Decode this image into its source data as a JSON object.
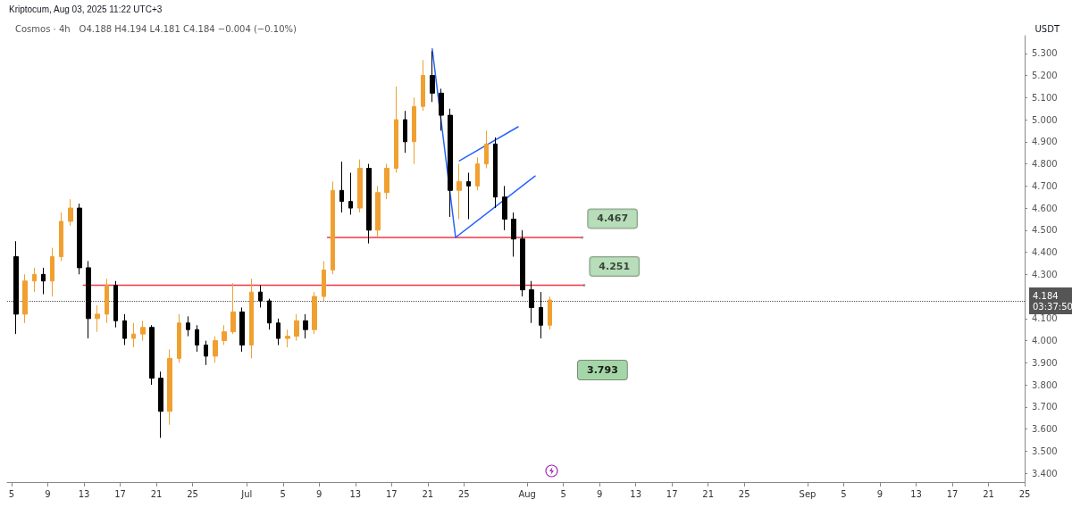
{
  "chart_data": {
    "type": "candlestick",
    "title": "Cosmos · 4h",
    "subtitle": "O4.188 H4.194 L4.181 C4.184 −0.004 (−0.10%)",
    "ylabel": "USDT",
    "annotations": [
      "Kriptocum, Aug 03, 2025 11:22 UTC+3",
      {
        "text": "4.467",
        "x": "2025-08-07T02:00",
        "y": 4.467
      },
      {
        "text": "4.251",
        "x": "2025-08-07T07:00",
        "y": 4.251
      },
      "3.793"
    ],
    "xlim": [
      "2025-06-04T12:00",
      "2025-09-25T00:00"
    ],
    "xticks": [
      {
        "value": "2025-06-05",
        "label": "5"
      },
      {
        "value": "2025-06-09",
        "label": "9"
      },
      {
        "value": "2025-06-13",
        "label": "13"
      },
      {
        "value": "2025-06-17",
        "label": "17"
      },
      {
        "value": "2025-06-21",
        "label": "21"
      },
      {
        "value": "2025-06-25",
        "label": "25"
      },
      {
        "value": "2025-07-01",
        "label": "Jul"
      },
      {
        "value": "2025-07-05",
        "label": "5"
      },
      {
        "value": "2025-07-09",
        "label": "9"
      },
      {
        "value": "2025-07-13",
        "label": "13"
      },
      {
        "value": "2025-07-17",
        "label": "17"
      },
      {
        "value": "2025-07-21",
        "label": "21"
      },
      {
        "value": "2025-07-25",
        "label": "25"
      },
      {
        "value": "2025-08-01",
        "label": "Aug"
      },
      {
        "value": "2025-08-05",
        "label": "5"
      },
      {
        "value": "2025-08-09",
        "label": "9"
      },
      {
        "value": "2025-08-13",
        "label": "13"
      },
      {
        "value": "2025-08-17",
        "label": "17"
      },
      {
        "value": "2025-08-21",
        "label": "21"
      },
      {
        "value": "2025-08-25",
        "label": "25"
      },
      {
        "value": "2025-09-01",
        "label": "Sep"
      },
      {
        "value": "2025-09-05",
        "label": "5"
      },
      {
        "value": "2025-09-09",
        "label": "9"
      },
      {
        "value": "2025-09-13",
        "label": "13"
      },
      {
        "value": "2025-09-17",
        "label": "17"
      },
      {
        "value": "2025-09-21",
        "label": "21"
      },
      {
        "value": "2025-09-25",
        "label": "25"
      }
    ],
    "ylim": [
      3.36,
      5.38
    ],
    "yticks": [
      {
        "value": 3.4,
        "label": "3.400"
      },
      {
        "value": 3.5,
        "label": "3.500"
      },
      {
        "value": 3.6,
        "label": "3.600"
      },
      {
        "value": 3.7,
        "label": "3.700"
      },
      {
        "value": 3.8,
        "label": "3.800"
      },
      {
        "value": 3.9,
        "label": "3.900"
      },
      {
        "value": 4.0,
        "label": "4.000"
      },
      {
        "value": 4.1,
        "label": "4.100"
      },
      {
        "value": 4.3,
        "label": "4.300"
      },
      {
        "value": 4.4,
        "label": "4.400"
      },
      {
        "value": 4.5,
        "label": "4.500"
      },
      {
        "value": 4.6,
        "label": "4.600"
      },
      {
        "value": 4.7,
        "label": "4.700"
      },
      {
        "value": 4.8,
        "label": "4.800"
      },
      {
        "value": 4.9,
        "label": "4.900"
      },
      {
        "value": 5.0,
        "label": "5.000"
      },
      {
        "value": 5.1,
        "label": "5.100"
      },
      {
        "value": 5.2,
        "label": "5.200"
      },
      {
        "value": 5.3,
        "label": "5.300"
      }
    ],
    "ref_lines": [
      {
        "axis": "y",
        "value": 4.184,
        "label": "4.184\n03:37:50",
        "color": "#555555",
        "line_style": "dotted"
      }
    ],
    "series": [
      {
        "type": "candlestick",
        "colors": [
          "#000000",
          "#f0a030",
          "#f0a030",
          "#000000",
          "#f0a030",
          "#f0a030",
          "#f0a030",
          "#000000",
          "#000000",
          "#f0a030",
          "#f0a030",
          "#000000",
          "#000000",
          "#f0a030",
          "#f0a030",
          "#000000",
          "#000000",
          "#f0a030",
          "#f0a030",
          "#000000",
          "#000000",
          "#000000",
          "#f0a030",
          "#f0a030",
          "#f0a030",
          "#000000",
          "#f0a030",
          "#000000",
          "#000000",
          "#000000",
          "#f0a030",
          "#f0a030",
          "#000000",
          "#f0a030",
          "#f0a030",
          "#f0a030",
          "#000000",
          "#000000",
          "#f0a030",
          "#000000",
          "#f0a030",
          "#f0a030",
          "#f0a030",
          "#000000",
          "#f0a030",
          "#f0a030",
          "#000000",
          "#000000",
          "#000000",
          "#f0a030",
          "#000000",
          "#f0a030",
          "#f0a030",
          "#000000",
          "#000000",
          "#000000",
          "#000000",
          "#000000",
          "#000000",
          "#f0a030"
        ],
        "x": [
          "2025-06-05T12:00",
          "2025-06-06T12:00",
          "2025-06-07T12:00",
          "2025-06-08T12:00",
          "2025-06-09T12:00",
          "2025-06-10T12:00",
          "2025-06-11T12:00",
          "2025-06-12T12:00",
          "2025-06-13T12:00",
          "2025-06-14T12:00",
          "2025-06-15T12:00",
          "2025-06-16T12:00",
          "2025-06-17T12:00",
          "2025-06-18T12:00",
          "2025-06-19T12:00",
          "2025-06-20T12:00",
          "2025-06-21T12:00",
          "2025-06-22T12:00",
          "2025-06-23T12:00",
          "2025-06-24T12:00",
          "2025-06-25T12:00",
          "2025-06-26T12:00",
          "2025-06-27T12:00",
          "2025-06-28T12:00",
          "2025-06-29T12:00",
          "2025-06-30T12:00",
          "2025-07-01T12:00",
          "2025-07-02T12:00",
          "2025-07-03T12:00",
          "2025-07-04T12:00",
          "2025-07-05T12:00",
          "2025-07-06T12:00",
          "2025-07-07T12:00",
          "2025-07-08T12:00",
          "2025-07-09T12:00",
          "2025-07-10T12:00",
          "2025-07-11T12:00",
          "2025-07-12T12:00",
          "2025-07-13T12:00",
          "2025-07-14T12:00",
          "2025-07-15T12:00",
          "2025-07-16T12:00",
          "2025-07-17T12:00",
          "2025-07-18T12:00",
          "2025-07-19T12:00",
          "2025-07-20T12:00",
          "2025-07-21T12:00",
          "2025-07-22T12:00",
          "2025-07-23T12:00",
          "2025-07-24T12:00",
          "2025-07-25T12:00",
          "2025-07-26T12:00",
          "2025-07-27T12:00",
          "2025-07-28T12:00",
          "2025-07-29T12:00",
          "2025-07-30T12:00",
          "2025-07-31T12:00",
          "2025-08-01T12:00",
          "2025-08-02T12:00",
          "2025-08-03T12:00"
        ],
        "ohlc": [
          [
            4.38,
            4.45,
            4.03,
            4.12
          ],
          [
            4.12,
            4.3,
            4.08,
            4.27
          ],
          [
            4.27,
            4.33,
            4.22,
            4.3
          ],
          [
            4.3,
            4.33,
            4.21,
            4.27
          ],
          [
            4.27,
            4.42,
            4.2,
            4.38
          ],
          [
            4.38,
            4.58,
            4.36,
            4.54
          ],
          [
            4.54,
            4.64,
            4.52,
            4.6
          ],
          [
            4.6,
            4.62,
            4.3,
            4.33
          ],
          [
            4.33,
            4.36,
            4.01,
            4.1
          ],
          [
            4.1,
            4.16,
            4.04,
            4.12
          ],
          [
            4.12,
            4.28,
            4.08,
            4.25
          ],
          [
            4.25,
            4.27,
            4.06,
            4.09
          ],
          [
            4.09,
            4.12,
            3.98,
            4.01
          ],
          [
            4.01,
            4.08,
            3.97,
            4.03
          ],
          [
            4.03,
            4.09,
            4.0,
            4.06
          ],
          [
            4.06,
            4.07,
            3.8,
            3.83
          ],
          [
            3.83,
            3.86,
            3.56,
            3.68
          ],
          [
            3.68,
            3.96,
            3.62,
            3.92
          ],
          [
            3.92,
            4.12,
            3.9,
            4.08
          ],
          [
            4.08,
            4.11,
            4.02,
            4.05
          ],
          [
            4.05,
            4.07,
            3.95,
            3.98
          ],
          [
            3.98,
            4.0,
            3.89,
            3.93
          ],
          [
            3.93,
            4.02,
            3.9,
            4.0
          ],
          [
            4.0,
            4.07,
            3.98,
            4.04
          ],
          [
            4.04,
            4.26,
            4.03,
            4.13
          ],
          [
            4.13,
            4.15,
            3.95,
            3.98
          ],
          [
            3.98,
            4.28,
            3.92,
            4.22
          ],
          [
            4.22,
            4.25,
            4.15,
            4.18
          ],
          [
            4.18,
            4.19,
            4.05,
            4.08
          ],
          [
            4.08,
            4.1,
            3.98,
            4.01
          ],
          [
            4.01,
            4.05,
            3.97,
            4.02
          ],
          [
            4.02,
            4.12,
            4.0,
            4.09
          ],
          [
            4.09,
            4.12,
            4.01,
            4.05
          ],
          [
            4.05,
            4.22,
            4.03,
            4.2
          ],
          [
            4.2,
            4.36,
            4.18,
            4.32
          ],
          [
            4.32,
            4.72,
            4.3,
            4.68
          ],
          [
            4.68,
            4.81,
            4.58,
            4.63
          ],
          [
            4.63,
            4.76,
            4.57,
            4.6
          ],
          [
            4.6,
            4.82,
            4.58,
            4.78
          ],
          [
            4.78,
            4.8,
            4.44,
            4.5
          ],
          [
            4.5,
            4.7,
            4.47,
            4.67
          ],
          [
            4.67,
            4.8,
            4.64,
            4.78
          ],
          [
            4.78,
            5.15,
            4.76,
            5.0
          ],
          [
            5.0,
            5.04,
            4.85,
            4.9
          ],
          [
            4.9,
            5.1,
            4.8,
            5.06
          ],
          [
            5.06,
            5.27,
            5.04,
            5.2
          ],
          [
            5.2,
            5.31,
            5.08,
            5.12
          ],
          [
            5.12,
            5.14,
            4.95,
            5.02
          ],
          [
            5.02,
            5.05,
            4.56,
            4.68
          ],
          [
            4.68,
            4.8,
            4.55,
            4.72
          ],
          [
            4.72,
            4.76,
            4.55,
            4.7
          ],
          [
            4.7,
            4.83,
            4.68,
            4.8
          ],
          [
            4.8,
            4.95,
            4.78,
            4.89
          ],
          [
            4.89,
            4.92,
            4.6,
            4.65
          ],
          [
            4.65,
            4.7,
            4.5,
            4.55
          ],
          [
            4.55,
            4.58,
            4.38,
            4.46
          ],
          [
            4.46,
            4.5,
            4.2,
            4.23
          ],
          [
            4.23,
            4.27,
            4.08,
            4.15
          ],
          [
            4.15,
            4.22,
            4.01,
            4.07
          ],
          [
            4.07,
            4.2,
            4.05,
            4.184
          ]
        ]
      },
      {
        "type": "line",
        "color": "#f23645",
        "x": [
          "2025-07-09T22:00",
          "2025-08-07T02:00"
        ],
        "values": [
          4.467,
          4.467
        ]
      },
      {
        "type": "line",
        "color": "#f23645",
        "x": [
          "2025-06-12T22:00",
          "2025-08-07T07:00"
        ],
        "values": [
          4.251,
          4.251
        ]
      },
      {
        "type": "line",
        "color": "#2962ff",
        "x": [
          "2025-07-21T12:00",
          "2025-07-24T02:00"
        ],
        "values": [
          5.32,
          4.467
        ]
      },
      {
        "type": "line",
        "color": "#2962ff",
        "x": [
          "2025-07-24T02:00",
          "2025-08-01T21:00"
        ],
        "values": [
          4.467,
          4.745
        ]
      },
      {
        "type": "line",
        "color": "#2962ff",
        "x": [
          "2025-07-24T12:00",
          "2025-07-31T00:00"
        ],
        "values": [
          4.814,
          4.968
        ]
      }
    ]
  }
}
